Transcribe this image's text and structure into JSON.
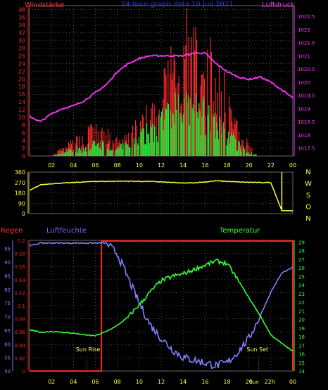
{
  "header": {
    "left": "Windstärke",
    "center": "24 hour graph data  10 Juli 2021",
    "right": "Luftdruck"
  },
  "colors": {
    "wind": "#ff2a2a",
    "gust": "#00ff3a",
    "pressure": "#ff33ff",
    "direction": "#ffff33",
    "rain": "#ff2020",
    "humidity": "#8080ff",
    "temperature": "#33ff33",
    "grid": "#777777"
  },
  "time_ticks": [
    "02",
    "04",
    "06",
    "08",
    "10",
    "12",
    "14",
    "16",
    "18",
    "20",
    "22",
    "00"
  ],
  "chart_data": [
    {
      "type": "bar",
      "title": "24 hour graph data  10 Juli 2021",
      "ylabel": "Windstärke",
      "y2label": "Luftdruck",
      "ylim": [
        0,
        39
      ],
      "y_ticks": [
        "0",
        "2",
        "4",
        "6",
        "8",
        "10",
        "12",
        "14",
        "16",
        "18",
        "20",
        "22",
        "24",
        "26",
        "28",
        "30",
        "32",
        "34",
        "36",
        "38"
      ],
      "y2lim": [
        1017.2,
        1022.9
      ],
      "y2_ticks": [
        "1017.5",
        "1018",
        "1018.5",
        "1019",
        "1019.5",
        "1020",
        "1020.5",
        "1021",
        "1021.5",
        "1022",
        "1022.5"
      ],
      "x_hours": [
        0,
        1,
        2,
        3,
        4,
        5,
        6,
        7,
        8,
        9,
        10,
        11,
        12,
        13,
        14,
        15,
        16,
        17,
        18,
        19,
        20,
        21,
        22,
        23,
        24
      ],
      "series": [
        {
          "kind": "gust",
          "values": [
            0,
            0,
            0,
            2,
            4,
            6,
            8,
            6,
            4,
            5,
            9,
            12,
            18,
            26,
            32,
            30,
            28,
            22,
            18,
            8,
            3,
            0,
            0,
            0,
            0
          ]
        },
        {
          "kind": "wind",
          "values": [
            0,
            0,
            0,
            1,
            2,
            2,
            3,
            3,
            2,
            3,
            5,
            7,
            10,
            12,
            13,
            12,
            11,
            8,
            6,
            3,
            1,
            0,
            0,
            0,
            0
          ]
        },
        {
          "kind": "pressure",
          "values": [
            1018.7,
            1018.5,
            1018.8,
            1019.0,
            1019.1,
            1019.3,
            1019.6,
            1019.9,
            1020.4,
            1020.7,
            1020.9,
            1021.0,
            1021.0,
            1021.0,
            1021.0,
            1021.1,
            1021.1,
            1020.7,
            1020.4,
            1020.2,
            1020.1,
            1020.2,
            1020.0,
            1019.7,
            1019.4
          ]
        }
      ]
    },
    {
      "type": "line",
      "ylabel_right": [
        "N",
        "W",
        "S",
        "O",
        "N"
      ],
      "ylim": [
        0,
        360
      ],
      "y_ticks": [
        "0",
        "90",
        "180",
        "270",
        "360"
      ],
      "x_hours": [
        0,
        1,
        2,
        3,
        4,
        5,
        6,
        7,
        8,
        9,
        10,
        11,
        12,
        13,
        14,
        15,
        16,
        17,
        18,
        19,
        20,
        21,
        22,
        23,
        24
      ],
      "series": [
        {
          "kind": "direction",
          "values": [
            200,
            250,
            260,
            265,
            270,
            275,
            280,
            280,
            282,
            282,
            280,
            280,
            275,
            270,
            265,
            268,
            275,
            285,
            280,
            275,
            272,
            270,
            270,
            25,
            25
          ]
        }
      ]
    },
    {
      "type": "line",
      "labels": {
        "rain": "Regen",
        "humidity": "Luftfeuchte",
        "temperature": "Temperatur"
      },
      "rain_ticks": [
        "0",
        "0.02",
        "0.04",
        "0.06",
        "0.08",
        "0.1",
        "0.12",
        "0.14",
        "0.16",
        "0.18",
        "0.2"
      ],
      "rain_lim": [
        0,
        0.2
      ],
      "humidity_ticks": [
        "50",
        "55",
        "60",
        "65",
        "70",
        "75",
        "80",
        "85",
        "90",
        "95"
      ],
      "humidity_lim": [
        50,
        98
      ],
      "temp_ticks": [
        "14",
        "15",
        "16",
        "17",
        "18",
        "19",
        "20",
        "21",
        "22",
        "23",
        "24",
        "25",
        "26",
        "27",
        "28",
        "29"
      ],
      "temp_lim": [
        14,
        29.2
      ],
      "annotations": [
        "Sun Rise",
        "Sun Set",
        "Sun 22h"
      ],
      "x_hours": [
        0,
        1,
        2,
        3,
        4,
        5,
        6,
        7,
        8,
        9,
        10,
        11,
        12,
        13,
        14,
        15,
        16,
        17,
        18,
        19,
        20,
        21,
        22,
        23,
        24
      ],
      "series": [
        {
          "kind": "temperature",
          "values": [
            18.8,
            18.5,
            18.6,
            18.5,
            18.4,
            18.2,
            18.1,
            18.6,
            19.3,
            20.3,
            21.7,
            23.2,
            24.5,
            25.0,
            25.3,
            25.8,
            26.3,
            26.8,
            26.5,
            24.6,
            22.5,
            20.5,
            18.2,
            17.2,
            16.3
          ]
        },
        {
          "kind": "humidity",
          "values": [
            96,
            97,
            97,
            97,
            97,
            97,
            97,
            97,
            93,
            84,
            75,
            67,
            62,
            58,
            55,
            54,
            53,
            52,
            53,
            57,
            62,
            70,
            79,
            86,
            88
          ]
        },
        {
          "kind": "rain",
          "values": [
            0,
            0,
            0,
            0,
            0,
            0,
            0,
            0.2,
            0.2,
            0.2,
            0.2,
            0.2,
            0.2,
            0.2,
            0.2,
            0.2,
            0.2,
            0.2,
            0.2,
            0.2,
            0.2,
            0.2,
            0.2,
            0.2,
            0.2
          ]
        }
      ]
    }
  ]
}
